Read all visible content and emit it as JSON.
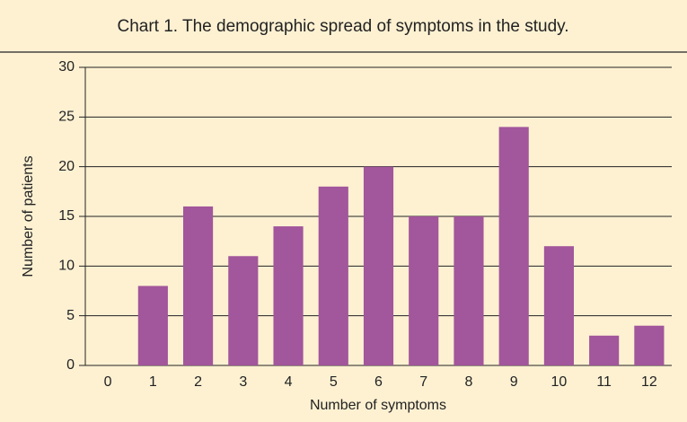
{
  "chart_data": {
    "type": "bar",
    "title": "Chart 1. The demographic spread of symptoms in the study.",
    "x_label": "Number of symptoms",
    "y_label": "Number of patients",
    "categories": [
      "0",
      "1",
      "2",
      "3",
      "4",
      "5",
      "6",
      "7",
      "8",
      "9",
      "10",
      "11",
      "12"
    ],
    "values": [
      0,
      8,
      16,
      11,
      14,
      18,
      20,
      15,
      15,
      24,
      12,
      3,
      4
    ],
    "color": "#a2569b",
    "ylim": [
      0,
      30
    ],
    "yticks": [
      0,
      5,
      10,
      15,
      20,
      25,
      30
    ],
    "grid": true
  }
}
